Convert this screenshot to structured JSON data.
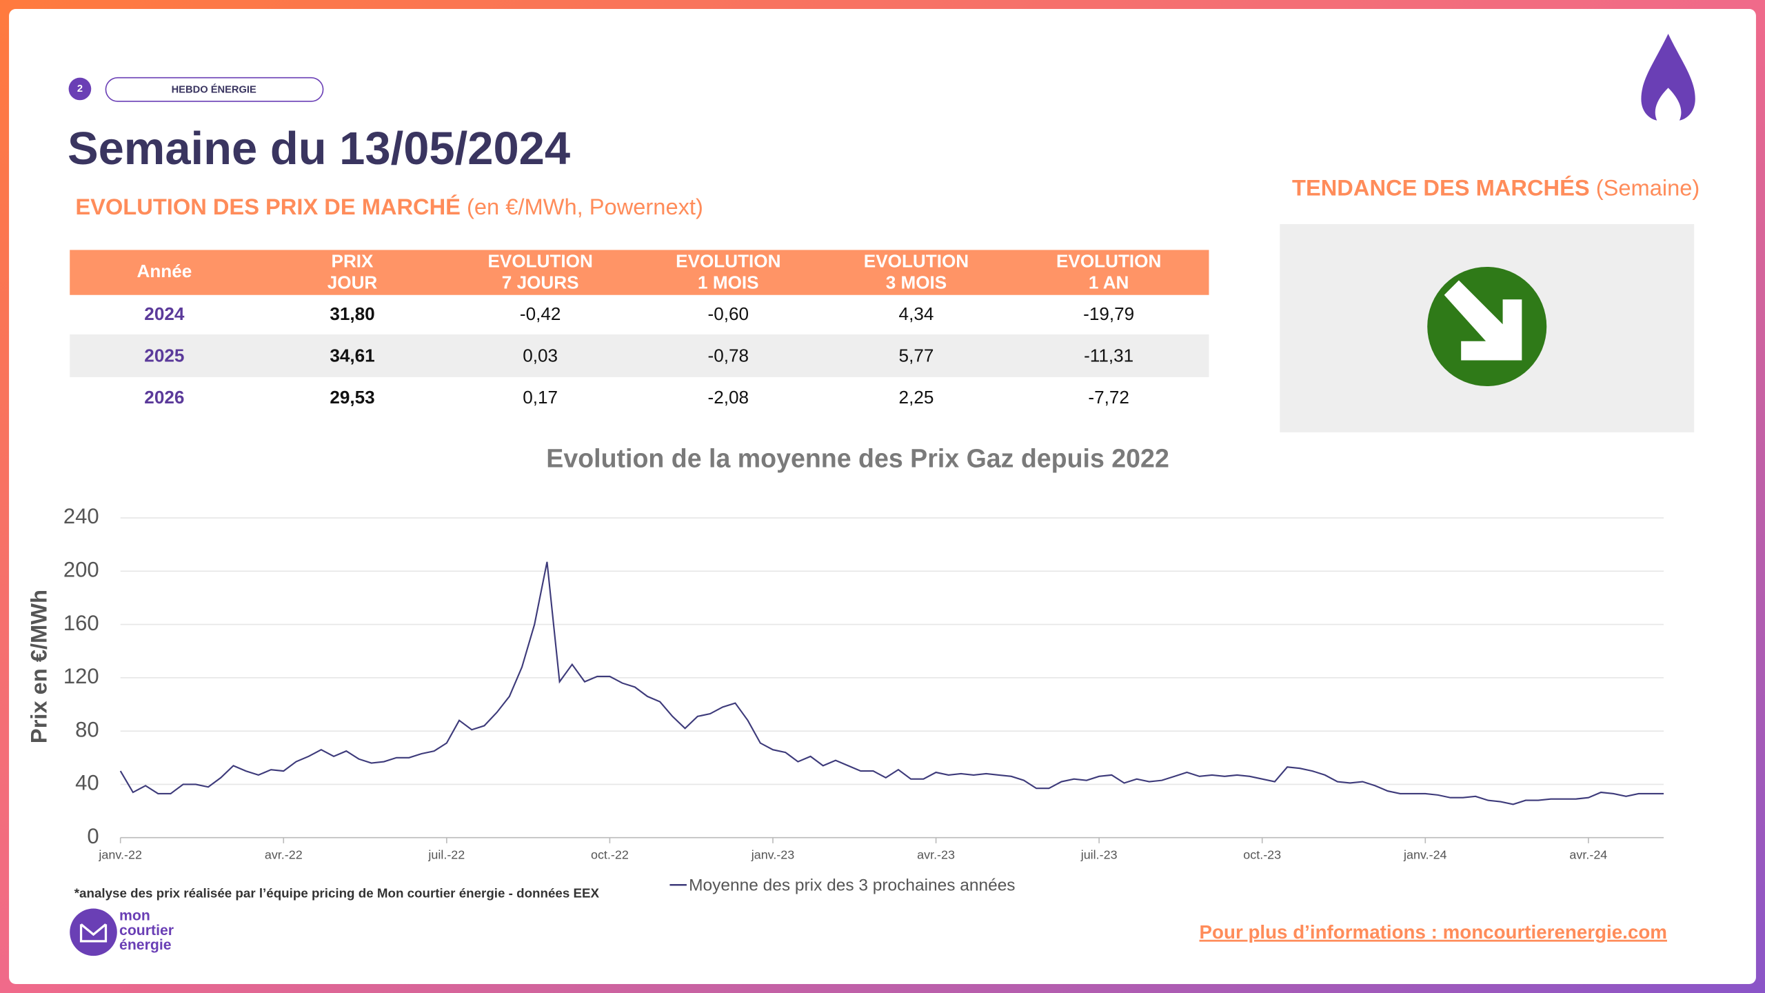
{
  "header": {
    "page": "2",
    "tag": "HEBDO ÉNERGIE",
    "title": "Semaine du 13/05/2024"
  },
  "section": {
    "title": "EVOLUTION DES PRIX DE MARCHÉ",
    "subtitle": "(en €/MWh, Powernext)"
  },
  "table": {
    "headers": [
      [
        "Année"
      ],
      [
        "PRIX",
        "JOUR"
      ],
      [
        "EVOLUTION",
        "7 JOURS"
      ],
      [
        "EVOLUTION",
        "1 MOIS"
      ],
      [
        "EVOLUTION",
        "3 MOIS"
      ],
      [
        "EVOLUTION",
        "1 AN"
      ]
    ],
    "rows": [
      [
        "2024",
        "31,80",
        "-0,42",
        "-0,60",
        "4,34",
        "-19,79"
      ],
      [
        "2025",
        "34,61",
        "0,03",
        "-0,78",
        "5,77",
        "-11,31"
      ],
      [
        "2026",
        "29,53",
        "0,17",
        "-2,08",
        "2,25",
        "-7,72"
      ]
    ]
  },
  "trend": {
    "title": "TENDANCE DES MARCHÉS",
    "subtitle": "(Semaine)"
  },
  "chart_data": {
    "type": "line",
    "title": "Evolution de la moyenne des Prix Gaz depuis 2022",
    "y_label": "Prix en €/MWh",
    "categories": [
      "janv.-22",
      null,
      null,
      null,
      null,
      null,
      null,
      null,
      null,
      null,
      null,
      null,
      null,
      "avr.-22",
      null,
      null,
      null,
      null,
      null,
      null,
      null,
      null,
      null,
      null,
      null,
      null,
      "juil.-22",
      null,
      null,
      null,
      null,
      null,
      null,
      null,
      null,
      null,
      null,
      null,
      null,
      "oct.-22",
      null,
      null,
      null,
      null,
      null,
      null,
      null,
      null,
      null,
      null,
      null,
      null,
      "janv.-23",
      null,
      null,
      null,
      null,
      null,
      null,
      null,
      null,
      null,
      null,
      null,
      null,
      "avr.-23",
      null,
      null,
      null,
      null,
      null,
      null,
      null,
      null,
      null,
      null,
      null,
      null,
      "juil.-23",
      null,
      null,
      null,
      null,
      null,
      null,
      null,
      null,
      null,
      null,
      null,
      null,
      "oct.-23",
      null,
      null,
      null,
      null,
      null,
      null,
      null,
      null,
      null,
      null,
      null,
      null,
      "janv.-24",
      null,
      null,
      null,
      null,
      null,
      null,
      null,
      null,
      null,
      null,
      null,
      null,
      "avr.-24",
      null,
      null,
      null,
      null,
      null,
      null
    ],
    "series": [
      {
        "name": "Moyenne des prix des 3 prochaines années",
        "color": "#3d3a7a",
        "values": [
          50,
          34,
          39,
          33,
          33,
          40,
          40,
          38,
          45,
          54,
          50,
          47,
          51,
          50,
          57,
          61,
          66,
          61,
          65,
          59,
          56,
          57,
          60,
          60,
          63,
          65,
          71,
          88,
          81,
          84,
          94,
          106,
          128,
          160,
          207,
          117,
          130,
          117,
          121,
          121,
          116,
          113,
          106,
          102,
          91,
          82,
          91,
          93,
          98,
          101,
          88,
          71,
          66,
          64,
          57,
          61,
          54,
          58,
          54,
          50,
          50,
          45,
          51,
          44,
          44,
          49,
          47,
          48,
          47,
          48,
          47,
          46,
          43,
          37,
          37,
          42,
          44,
          43,
          46,
          47,
          41,
          44,
          42,
          43,
          46,
          49,
          46,
          47,
          46,
          47,
          46,
          44,
          42,
          53,
          52,
          50,
          47,
          42,
          41,
          42,
          39,
          35,
          33,
          33,
          33,
          32,
          30,
          30,
          31,
          28,
          27,
          25,
          28,
          28,
          29,
          29,
          29,
          30,
          34,
          33,
          31,
          33,
          33,
          33
        ]
      }
    ],
    "ylim": [
      0,
      240
    ],
    "yticks": [
      0,
      40,
      80,
      120,
      160,
      200,
      240
    ],
    "grid": true
  },
  "footer": {
    "note": "*analyse des prix réalisée par l’équipe pricing de Mon courtier énergie -  données EEX",
    "logo": [
      "mon",
      "courtier",
      "énergie"
    ],
    "link": "Pour plus d’informations : moncourtierenergie.com"
  }
}
